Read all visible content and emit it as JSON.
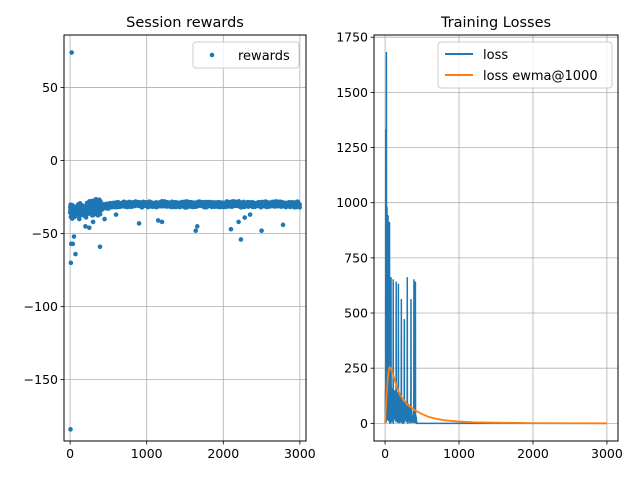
{
  "chart_data": [
    {
      "type": "scatter",
      "title": "Session rewards",
      "xlabel": "",
      "ylabel": "",
      "xlim": [
        -80,
        3080
      ],
      "ylim": [
        -192,
        86
      ],
      "xticks": [
        0,
        1000,
        2000,
        3000
      ],
      "yticks": [
        50,
        0,
        -50,
        -100,
        -150
      ],
      "grid": true,
      "legend_position": "top-right",
      "series": [
        {
          "name": "rewards",
          "color": "#1f77b4",
          "summary": {
            "n_sessions": 3000,
            "steady_state_mean": -30,
            "early_mean": -35
          },
          "outliers": [
            {
              "x": 20,
              "y": 74
            },
            {
              "x": 5,
              "y": -184
            },
            {
              "x": 10,
              "y": -70
            },
            {
              "x": 15,
              "y": -57
            },
            {
              "x": 35,
              "y": -57
            },
            {
              "x": 50,
              "y": -52
            },
            {
              "x": 70,
              "y": -64
            },
            {
              "x": 120,
              "y": -40
            },
            {
              "x": 200,
              "y": -45
            },
            {
              "x": 250,
              "y": -46
            },
            {
              "x": 300,
              "y": -42
            },
            {
              "x": 390,
              "y": -59
            },
            {
              "x": 450,
              "y": -40
            },
            {
              "x": 600,
              "y": -37
            },
            {
              "x": 900,
              "y": -43
            },
            {
              "x": 1150,
              "y": -41
            },
            {
              "x": 1200,
              "y": -42
            },
            {
              "x": 1640,
              "y": -48
            },
            {
              "x": 1660,
              "y": -45
            },
            {
              "x": 2100,
              "y": -47
            },
            {
              "x": 2200,
              "y": -42
            },
            {
              "x": 2230,
              "y": -54
            },
            {
              "x": 2280,
              "y": -39
            },
            {
              "x": 2350,
              "y": -37
            },
            {
              "x": 2500,
              "y": -48
            },
            {
              "x": 2780,
              "y": -44
            },
            {
              "x": 2950,
              "y": -31
            }
          ]
        }
      ]
    },
    {
      "type": "line",
      "title": "Training Losses",
      "xlabel": "",
      "ylabel": "",
      "xlim": [
        -150,
        3150
      ],
      "ylim": [
        -80,
        1760
      ],
      "xticks": [
        0,
        1000,
        2000,
        3000
      ],
      "yticks": [
        0,
        250,
        500,
        750,
        1000,
        1250,
        1500,
        1750
      ],
      "grid": true,
      "legend_position": "top-right",
      "series": [
        {
          "name": "loss",
          "color": "#1f77b4",
          "spikes": [
            {
              "x": 10,
              "y": 1330
            },
            {
              "x": 18,
              "y": 1680
            },
            {
              "x": 25,
              "y": 980
            },
            {
              "x": 40,
              "y": 940
            },
            {
              "x": 60,
              "y": 910
            },
            {
              "x": 80,
              "y": 660
            },
            {
              "x": 110,
              "y": 650
            },
            {
              "x": 150,
              "y": 640
            },
            {
              "x": 180,
              "y": 630
            },
            {
              "x": 220,
              "y": 560
            },
            {
              "x": 260,
              "y": 470
            },
            {
              "x": 300,
              "y": 660
            },
            {
              "x": 350,
              "y": 560
            },
            {
              "x": 390,
              "y": 650
            },
            {
              "x": 410,
              "y": 640
            }
          ],
          "near_zero_after": 430,
          "end_x": 3000
        },
        {
          "name": "loss ewma@1000",
          "color": "#ff7f0e",
          "points": [
            [
              0,
              0
            ],
            [
              20,
              130
            ],
            [
              40,
              220
            ],
            [
              60,
              255
            ],
            [
              80,
              250
            ],
            [
              100,
              230
            ],
            [
              150,
              175
            ],
            [
              200,
              130
            ],
            [
              300,
              85
            ],
            [
              400,
              60
            ],
            [
              500,
              42
            ],
            [
              600,
              28
            ],
            [
              700,
              20
            ],
            [
              800,
              14
            ],
            [
              1000,
              8
            ],
            [
              1200,
              5
            ],
            [
              1500,
              3
            ],
            [
              2000,
              1
            ],
            [
              2500,
              0.5
            ],
            [
              3000,
              0.2
            ]
          ]
        }
      ]
    }
  ]
}
